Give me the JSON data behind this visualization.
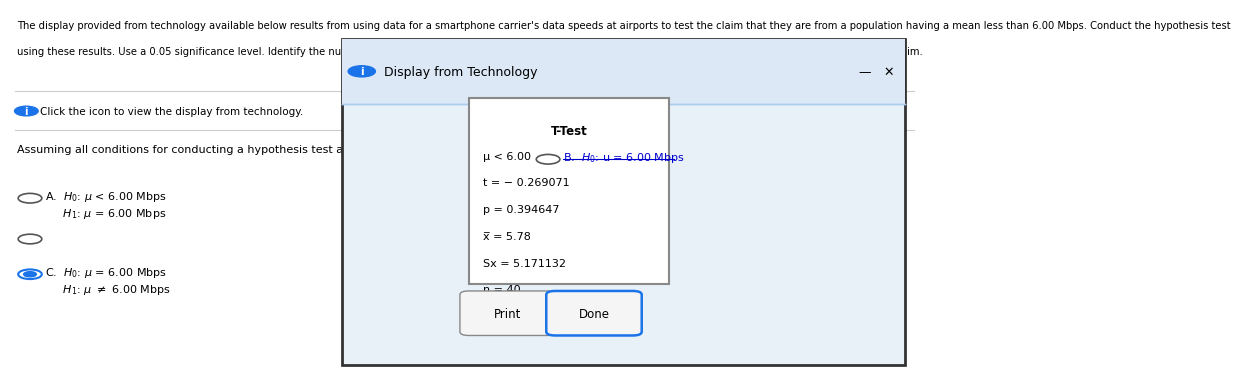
{
  "title_text": "The display provided from technology available below results from using data for a smartphone carrier's data speeds at airports to test the claim that they are from a population having a mean less than 6.00 Mbps. Conduct the hypothesis test\nusing these results. Use a 0.05 significance level. Identify the null and alternative hypotheses, test statistic, P-value, and state the final conclusion that addresses the original claim.",
  "icon_text": "ⓘ  Click the icon to view the display from technology.",
  "question_text": "Assuming all conditions for conducting a hypothesis test are met, what are the null and alternative hypotheses?",
  "option_A_line1": "A.   H₀: μ < 6.00 Mbps",
  "option_A_line2": "      H₁: μ = 6.00 Mbps",
  "option_B_line1": "B.   H₀: u = 6.00 Mbps",
  "option_C_line1": "C.   H₀: μ = 6.00 Mbps",
  "option_C_line2": "      H₁: μ ≠ 6.00 Mbps",
  "dialog_title": "Display from Technology",
  "ttest_title": "T-Test",
  "ttest_line1": "μ < 6.00",
  "ttest_line2": "t = − 0.269071",
  "ttest_line3": "p = 0.394647",
  "ttest_line4": "x̅ = 5.78",
  "ttest_line5": "Sx = 5.171132",
  "ttest_line6": "n = 40",
  "btn_print": "Print",
  "btn_done": "Done",
  "bg_color": "#ffffff",
  "dialog_bg": "#e8f0f8",
  "ttest_box_bg": "#ffffff",
  "text_color": "#000000",
  "option_B_underline": true,
  "selected_option": "C"
}
